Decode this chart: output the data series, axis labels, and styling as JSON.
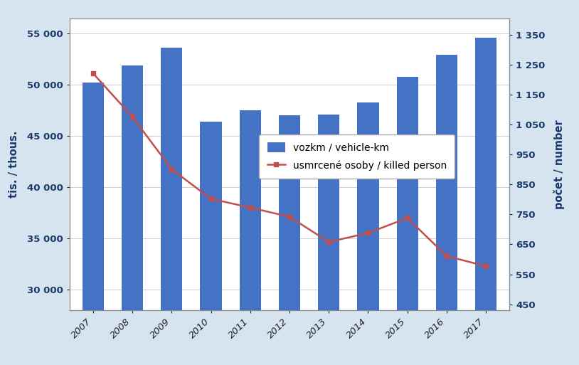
{
  "years": [
    2007,
    2008,
    2009,
    2010,
    2011,
    2012,
    2013,
    2014,
    2015,
    2016,
    2017
  ],
  "vozkm": [
    50200,
    51900,
    53600,
    46400,
    47500,
    47000,
    47100,
    48300,
    50800,
    52900,
    54600
  ],
  "killed": [
    1221,
    1076,
    901,
    802,
    773,
    742,
    658,
    688,
    738,
    611,
    577
  ],
  "bar_color": "#4472C4",
  "line_color": "#C0504D",
  "background_color": "#D6E4F0",
  "plot_bg_color": "#FFFFFF",
  "ylabel_left": "tis. / thous.",
  "ylabel_right": "počet / number",
  "ylim_left": [
    28000,
    56500
  ],
  "ylim_right": [
    430,
    1405
  ],
  "yticks_left": [
    30000,
    35000,
    40000,
    45000,
    50000,
    55000
  ],
  "yticks_right": [
    450,
    550,
    650,
    750,
    850,
    950,
    1050,
    1150,
    1250,
    1350
  ],
  "legend_vozkm": "vozkm / vehicle-km",
  "legend_killed": "usmrcené osoby / killed person",
  "figsize": [
    8.14,
    5.13
  ],
  "dpi": 100
}
